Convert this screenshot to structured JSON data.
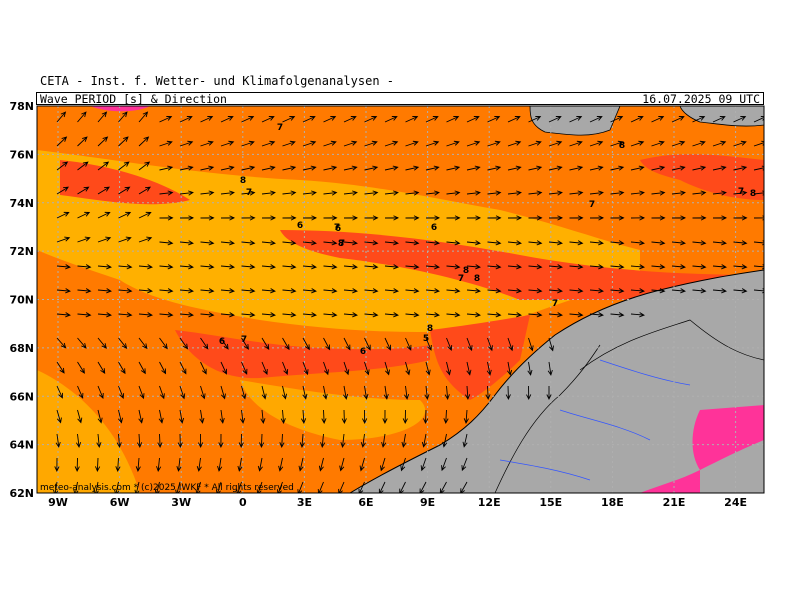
{
  "header": {
    "institution": "CETA - Inst. f. Wetter- und Klimafolgenanalysen -",
    "parameter": "Wave PERIOD [s] & Direction",
    "timestamp": "16.07.2025 09 UTC"
  },
  "map": {
    "lat_labels": [
      "78N",
      "76N",
      "74N",
      "72N",
      "70N",
      "68N",
      "66N",
      "64N",
      "62N"
    ],
    "lon_labels": [
      "9W",
      "6W",
      "3W",
      "0",
      "3E",
      "6E",
      "9E",
      "12E",
      "15E",
      "18E",
      "21E",
      "24E"
    ],
    "period_labels": [
      "7",
      "8",
      "7",
      "7",
      "8",
      "6",
      "7",
      "8",
      "6",
      "6",
      "7",
      "8",
      "7",
      "8",
      "5",
      "6",
      "7",
      "6",
      "7",
      "8",
      "7",
      "8"
    ],
    "copyright": "meteo-analysis.com * (c)2025 IWKF * All rights reserved",
    "colors": {
      "land": "#a8a8a8",
      "period_5": "#ff3399",
      "period_6": "#ff4a1a",
      "period_7": "#ff7a00",
      "period_8": "#ffb000",
      "grid": "#b0b0b0"
    }
  }
}
